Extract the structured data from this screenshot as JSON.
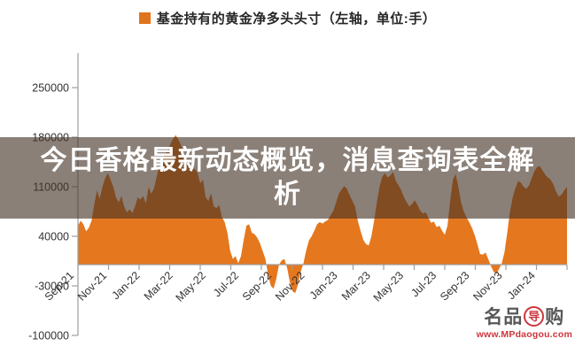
{
  "legend": {
    "label": "基金持有的黄金净多头头寸（左轴，单位:手）",
    "marker_color": "#E0741C"
  },
  "overlay": {
    "title": "今日香格最新动态概览，消息查询表全解析",
    "lines": [
      "今日香格最新动态概览，消息查询表全解",
      "析"
    ]
  },
  "watermark": {
    "brand_prefix": "名品",
    "brand_circle": "导",
    "brand_suffix": "购",
    "url": "www.MPdaogou.com",
    "accent_color": "#C9252C"
  },
  "colors": {
    "area": "#E5771E",
    "axis": "#9E9E9E",
    "tick_text": "#333333",
    "overlay_text": "#FFFFFF"
  },
  "chart_data": {
    "type": "area",
    "series_name": "基金持有的黄金净多头头寸",
    "axis_note": "左轴",
    "unit": "手",
    "legend_position": "top-center",
    "grid": false,
    "ylim": [
      -100000,
      298000
    ],
    "y_ticks": [
      250000,
      180000,
      110000,
      40000,
      -30000,
      -100000
    ],
    "y_tick_labels": [
      "250000",
      "180000",
      "110000",
      "40000",
      "-30000",
      "-100000"
    ],
    "x_labels": [
      "Sep-21",
      "Nov-21",
      "Jan-22",
      "Mar-22",
      "May-22",
      "Jul-22",
      "Sep-22",
      "Nov-22",
      "Jan-23",
      "Mar-23",
      "May-23",
      "Jul-23",
      "Sep-23",
      "Nov-23",
      "Jan-24"
    ],
    "x_start": "Sep-21",
    "sampling": "weekly-approx, uniform spacing across plot width",
    "values": [
      55000,
      62000,
      57000,
      47000,
      52000,
      62000,
      85000,
      105000,
      93000,
      110000,
      122000,
      129000,
      120000,
      110000,
      95000,
      88000,
      97000,
      82000,
      74000,
      78000,
      73000,
      82000,
      95000,
      92000,
      97000,
      86000,
      110000,
      100000,
      108000,
      125000,
      140000,
      150000,
      155000,
      162000,
      170000,
      178000,
      183000,
      176000,
      168000,
      155000,
      150000,
      140000,
      136000,
      135000,
      130000,
      115000,
      120000,
      95000,
      90000,
      101000,
      82000,
      80000,
      84000,
      67000,
      60000,
      45000,
      20000,
      8000,
      12000,
      2000,
      12000,
      35000,
      55000,
      57000,
      45000,
      43000,
      38000,
      30000,
      19000,
      8000,
      -15000,
      -30000,
      -34000,
      -20000,
      0,
      6000,
      8000,
      -5000,
      -25000,
      -38000,
      -40000,
      -28000,
      -10000,
      2000,
      20000,
      34000,
      40000,
      48000,
      57000,
      60000,
      58000,
      61000,
      63000,
      70000,
      76000,
      88000,
      100000,
      106000,
      111000,
      107000,
      98000,
      90000,
      82000,
      62000,
      48000,
      35000,
      29000,
      27000,
      40000,
      62000,
      88000,
      110000,
      124000,
      129000,
      123000,
      126000,
      131000,
      118000,
      112000,
      105000,
      95000,
      88000,
      82000,
      86000,
      91000,
      84000,
      76000,
      72000,
      74000,
      66000,
      59000,
      61000,
      53000,
      55000,
      48000,
      42000,
      55000,
      90000,
      120000,
      128000,
      110000,
      88000,
      75000,
      67000,
      60000,
      52000,
      42000,
      29000,
      15000,
      14000,
      17000,
      8000,
      -2000,
      -10000,
      -13000,
      -6000,
      2000,
      18000,
      45000,
      75000,
      95000,
      108000,
      118000,
      116000,
      110000,
      107000,
      112000,
      122000,
      132000,
      138000,
      139000,
      133000,
      127000,
      123000,
      120000,
      113000,
      103000,
      96000,
      99000,
      105000,
      110000
    ]
  }
}
